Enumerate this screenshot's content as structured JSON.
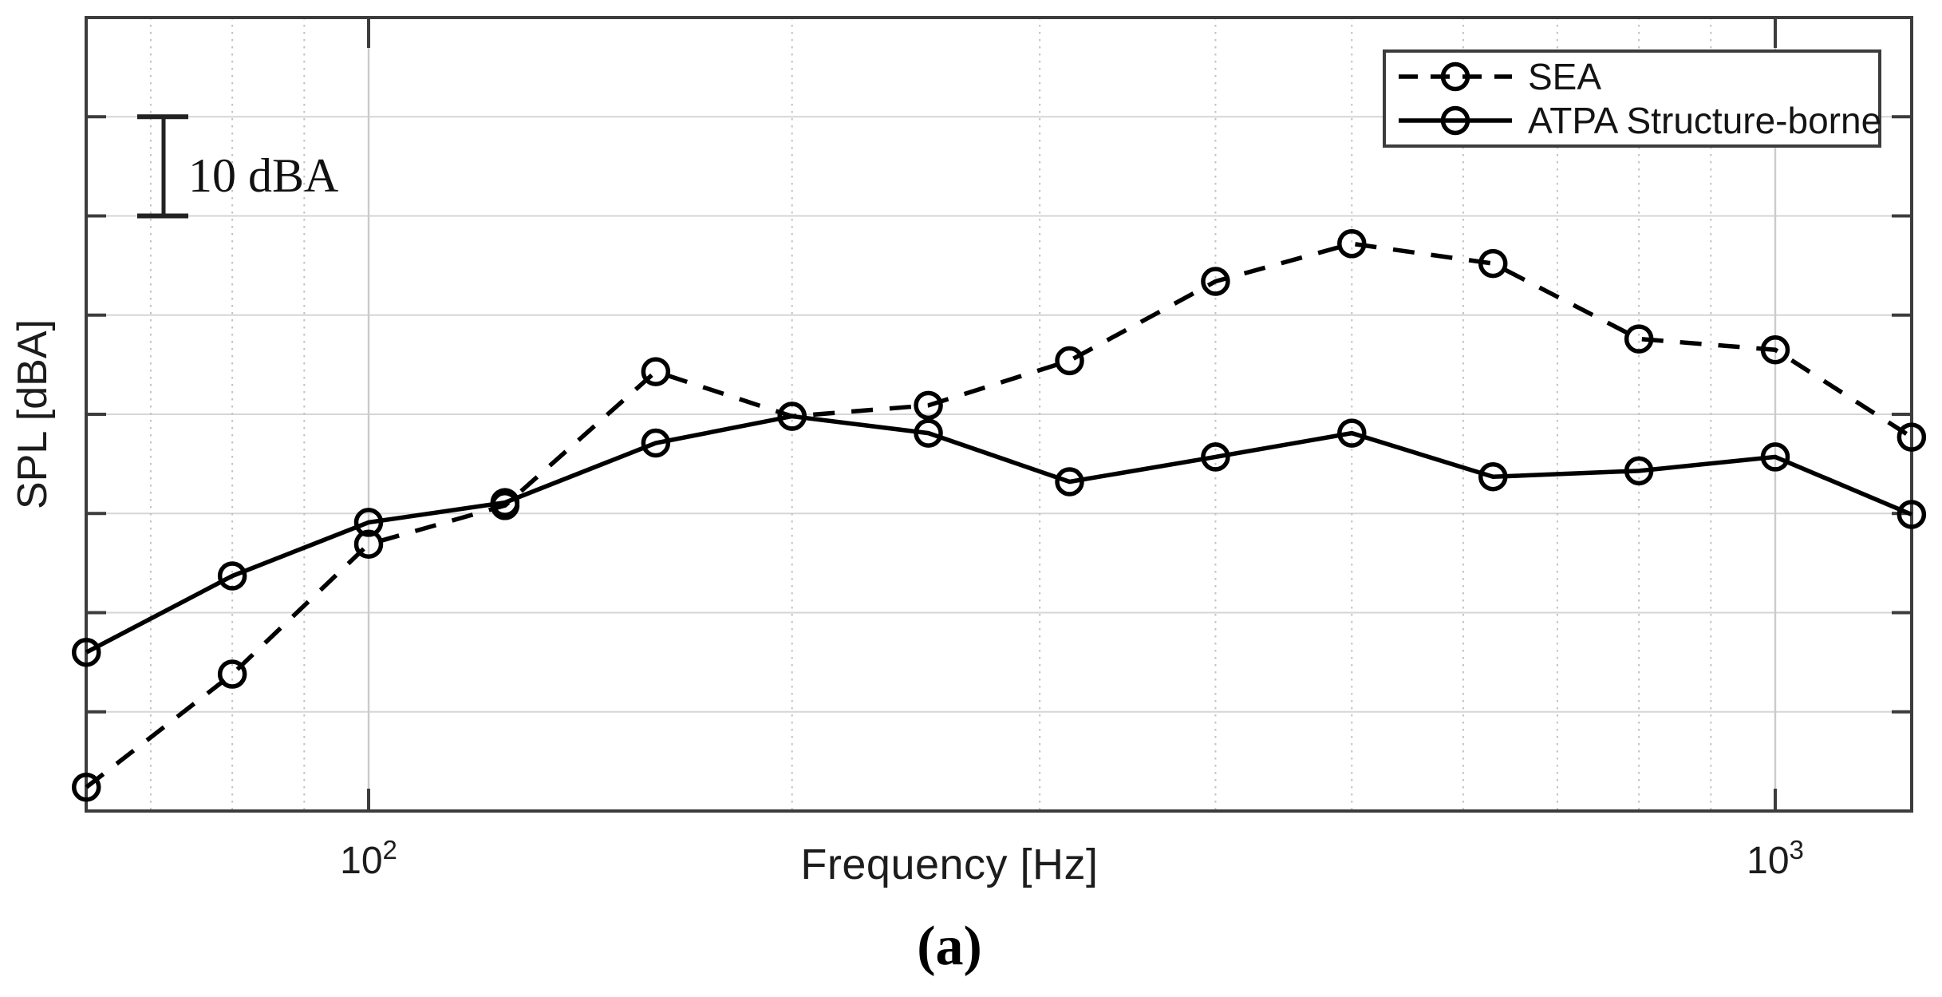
{
  "figure": {
    "caption": "(a)",
    "background": "#ffffff"
  },
  "axes": {
    "x_label": "Frequency [Hz]",
    "y_label": "SPL [dBA]",
    "x_scale": "log",
    "x_major_ticks": [
      {
        "base": "10",
        "exp": "2",
        "value_hz": 100
      },
      {
        "base": "10",
        "exp": "3",
        "value_hz": 1000
      }
    ],
    "y_tick_labels_shown": false,
    "y_grid_step_dba": 10,
    "grid": true
  },
  "scale_bar": {
    "label": "10 dBA",
    "span_dba": 10
  },
  "legend": {
    "position": "top-right",
    "items": [
      {
        "label": "SEA",
        "line_style": "dashed",
        "marker": "circle"
      },
      {
        "label": "ATPA Structure-borne",
        "line_style": "solid",
        "marker": "circle"
      }
    ]
  },
  "chart_data": {
    "type": "line",
    "title": "",
    "xlabel": "Frequency [Hz]",
    "ylabel": "SPL [dBA]",
    "x_scale": "log",
    "x_hz": [
      63,
      80,
      100,
      125,
      160,
      200,
      250,
      315,
      400,
      500,
      630,
      800,
      1000,
      1250
    ],
    "x_range_hz": [
      63,
      1250
    ],
    "y_axis_note": "y axis unlabeled; relative scale, one gridline division = 10 dBA",
    "y_relative_range": [
      0,
      80
    ],
    "series": [
      {
        "name": "SEA",
        "style": "dashed",
        "marker": "circle",
        "color": "#000000",
        "y_relative_dba": [
          2.4,
          13.8,
          26.9,
          30.8,
          44.3,
          39.8,
          40.9,
          45.4,
          53.4,
          57.2,
          55.2,
          47.6,
          46.5,
          37.7
        ]
      },
      {
        "name": "ATPA Structure-borne",
        "style": "solid",
        "marker": "circle",
        "color": "#000000",
        "y_relative_dba": [
          16.0,
          23.7,
          29.1,
          31.1,
          37.1,
          39.8,
          38.1,
          33.2,
          35.7,
          38.1,
          33.7,
          34.3,
          35.7,
          29.9
        ]
      }
    ],
    "legend_position": "top-right",
    "grid": true
  },
  "colors": {
    "line": "#000000",
    "grid_major": "#cbcbcb",
    "grid_minor": "#c2c2c2",
    "grid_horizontal": "#d6d6d6",
    "spine": "#3c3c3c",
    "text": "#1c1c1c",
    "background": "#ffffff"
  }
}
